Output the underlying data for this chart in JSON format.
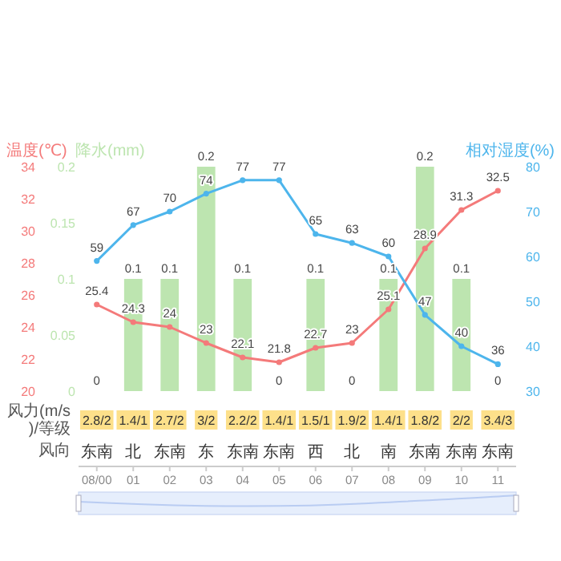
{
  "chart_data": {
    "type": "line",
    "categories": [
      "08/00",
      "01",
      "02",
      "03",
      "04",
      "05",
      "06",
      "07",
      "08",
      "09",
      "10",
      "11"
    ],
    "ylabel": "温度(℃)",
    "y2label": "降水(mm)",
    "y3label": "相对湿度(%)",
    "ylim": [
      20,
      34
    ],
    "yticks": [
      20,
      22,
      24,
      26,
      28,
      30,
      32,
      34
    ],
    "y2lim": [
      0,
      0.2
    ],
    "y2ticks": [
      0,
      0.05,
      0.1,
      0.15,
      0.2
    ],
    "y3lim": [
      30,
      80
    ],
    "y3ticks": [
      30,
      40,
      50,
      60,
      70,
      80
    ],
    "series": [
      {
        "type": "bar",
        "axis": "y2",
        "color": "#bde5b0",
        "values": [
          0,
          0.1,
          0.1,
          0.2,
          0.1,
          0,
          0.1,
          0,
          0.1,
          0.2,
          0.1,
          0
        ]
      },
      {
        "axis": "y",
        "color": "#f47a7a",
        "values": [
          25.4,
          24.3,
          24,
          23,
          22.1,
          21.8,
          22.7,
          23,
          25.1,
          28.9,
          31.3,
          32.5
        ]
      },
      {
        "axis": "y3",
        "color": "#4db5ec",
        "values": [
          59,
          67,
          70,
          74,
          77,
          77,
          65,
          63,
          60,
          47,
          40,
          36
        ]
      }
    ],
    "data_labels": true,
    "marker": "circle",
    "line_style": "solid",
    "annotations": [
      "风力(m/s)/等级",
      "风向",
      "2.8/2",
      "1.4/1",
      "2.7/2",
      "3/2",
      "2.2/2",
      "1.4/1",
      "1.5/1",
      "1.9/2",
      "1.4/1",
      "1.8/2",
      "2/2",
      "3.4/3",
      "东南",
      "北",
      "东南",
      "东",
      "东南",
      "东南",
      "西",
      "北",
      "南",
      "东南",
      "东南",
      "东南"
    ]
  }
}
